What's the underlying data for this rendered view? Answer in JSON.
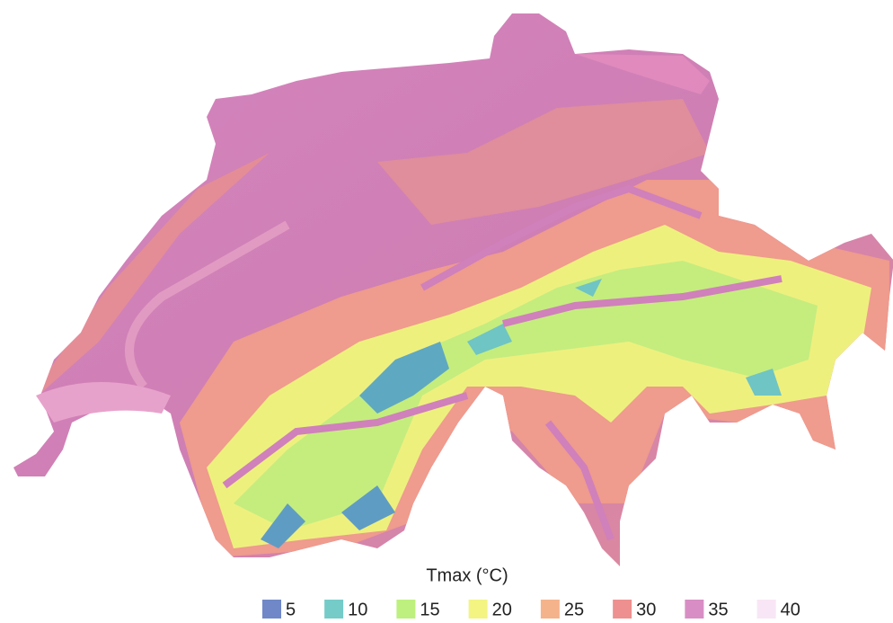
{
  "legend": {
    "title": "Tmax (°C)",
    "items": [
      {
        "label": 5,
        "color": "#7088c8"
      },
      {
        "label": 10,
        "color": "#74cbc8"
      },
      {
        "label": 15,
        "color": "#bdf07e"
      },
      {
        "label": 20,
        "color": "#f3f482"
      },
      {
        "label": 25,
        "color": "#f5b38b"
      },
      {
        "label": 30,
        "color": "#ee9090"
      },
      {
        "label": 35,
        "color": "#d88ec4"
      },
      {
        "label": 40,
        "color": "#f8e6f6"
      }
    ]
  }
}
